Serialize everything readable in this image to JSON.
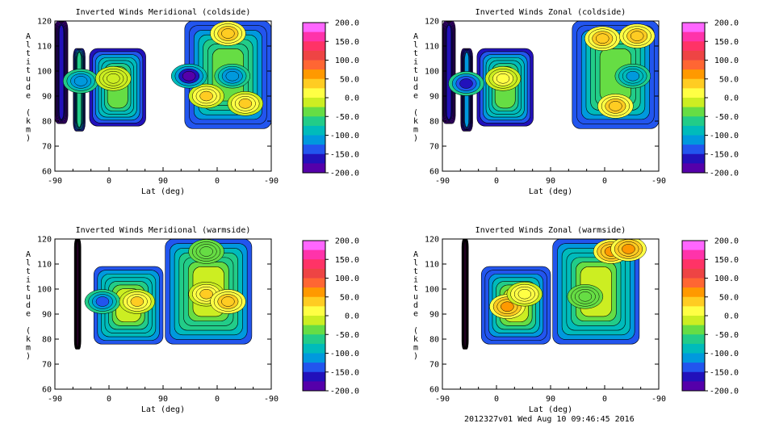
{
  "figure": {
    "footer": "2012327v01 Wed Aug 10 09:46:45 2016"
  },
  "chart_data": [
    {
      "type": "heatmap",
      "title": "Inverted Winds Meridional (coldside)",
      "xlabel": "Lat (deg)",
      "ylabel": "Altitude (km)",
      "x_ticks": [
        "-90",
        "0",
        "90",
        "0",
        "-90"
      ],
      "y_ticks": [
        60,
        70,
        80,
        90,
        100,
        110,
        120
      ],
      "ylim": [
        60,
        120
      ],
      "colorbar_ticks": [
        "200.0",
        "150.0",
        "100.0",
        "50.0",
        "0.0",
        "-50.0",
        "-100.0",
        "-150.0",
        "-200.0"
      ],
      "colorbar_range": [
        -200,
        200
      ],
      "regions": [
        {
          "x0": 0.0,
          "x1": 0.06,
          "ymin": 79,
          "ymax": 120,
          "value": -150
        },
        {
          "x0": 0.085,
          "x1": 0.14,
          "ymin": 76,
          "ymax": 109,
          "value": -60
        },
        {
          "x0": 0.16,
          "x1": 0.42,
          "ymin": 78,
          "ymax": 109,
          "value": -25
        },
        {
          "x0": 0.6,
          "x1": 1.0,
          "ymin": 77,
          "ymax": 120,
          "value": -20
        }
      ],
      "features": [
        {
          "x": 0.12,
          "y": 96,
          "value": -110
        },
        {
          "x": 0.27,
          "y": 97,
          "value": 10
        },
        {
          "x": 0.82,
          "y": 98,
          "value": -110
        },
        {
          "x": 0.8,
          "y": 115,
          "value": 60
        },
        {
          "x": 0.7,
          "y": 90,
          "value": 40
        },
        {
          "x": 0.62,
          "y": 98,
          "value": -170
        },
        {
          "x": 0.88,
          "y": 87,
          "value": 45
        }
      ]
    },
    {
      "type": "heatmap",
      "title": "Inverted Winds Zonal (coldside)",
      "xlabel": "Lat (deg)",
      "ylabel": "Altitude (km)",
      "x_ticks": [
        "-90",
        "0",
        "90",
        "0",
        "-90"
      ],
      "y_ticks": [
        60,
        70,
        80,
        90,
        100,
        110,
        120
      ],
      "ylim": [
        60,
        120
      ],
      "colorbar_ticks": [
        "200.0",
        "150.0",
        "100.0",
        "50.0",
        "0.0",
        "-50.0",
        "-100.0",
        "-150.0",
        "-200.0"
      ],
      "colorbar_range": [
        -200,
        200
      ],
      "regions": [
        {
          "x0": 0.0,
          "x1": 0.06,
          "ymin": 79,
          "ymax": 120,
          "value": -150
        },
        {
          "x0": 0.085,
          "x1": 0.14,
          "ymin": 76,
          "ymax": 109,
          "value": -110
        },
        {
          "x0": 0.16,
          "x1": 0.42,
          "ymin": 78,
          "ymax": 109,
          "value": -25
        },
        {
          "x0": 0.6,
          "x1": 1.0,
          "ymin": 77,
          "ymax": 120,
          "value": -20
        }
      ],
      "features": [
        {
          "x": 0.11,
          "y": 95,
          "value": -140
        },
        {
          "x": 0.28,
          "y": 97,
          "value": 20
        },
        {
          "x": 0.88,
          "y": 98,
          "value": -100
        },
        {
          "x": 0.74,
          "y": 113,
          "value": 50
        },
        {
          "x": 0.9,
          "y": 114,
          "value": 60
        },
        {
          "x": 0.8,
          "y": 86,
          "value": 50
        }
      ]
    },
    {
      "type": "heatmap",
      "title": "Inverted Winds Meridional (warmside)",
      "xlabel": "Lat (deg)",
      "ylabel": "Altitude (km)",
      "x_ticks": [
        "-90",
        "0",
        "90",
        "0",
        "-90"
      ],
      "y_ticks": [
        60,
        70,
        80,
        90,
        100,
        110,
        120
      ],
      "ylim": [
        60,
        120
      ],
      "colorbar_ticks": [
        "200.0",
        "150.0",
        "100.0",
        "50.0",
        "0.0",
        "-50.0",
        "-100.0",
        "-150.0",
        "-200.0"
      ],
      "colorbar_range": [
        -200,
        200
      ],
      "regions": [
        {
          "x0": 0.09,
          "x1": 0.12,
          "ymin": 76,
          "ymax": 120,
          "value": -200
        },
        {
          "x0": 0.18,
          "x1": 0.5,
          "ymin": 78,
          "ymax": 109,
          "value": 0
        },
        {
          "x0": 0.51,
          "x1": 0.91,
          "ymin": 78,
          "ymax": 120,
          "value": 5
        }
      ],
      "features": [
        {
          "x": 0.22,
          "y": 95,
          "value": -120
        },
        {
          "x": 0.38,
          "y": 95,
          "value": 40
        },
        {
          "x": 0.7,
          "y": 98,
          "value": 45
        },
        {
          "x": 0.8,
          "y": 95,
          "value": 50
        },
        {
          "x": 0.7,
          "y": 115,
          "value": -30
        }
      ]
    },
    {
      "type": "heatmap",
      "title": "Inverted Winds Zonal (warmside)",
      "xlabel": "Lat (deg)",
      "ylabel": "Altitude (km)",
      "x_ticks": [
        "-90",
        "0",
        "90",
        "0",
        "-90"
      ],
      "y_ticks": [
        60,
        70,
        80,
        90,
        100,
        110,
        120
      ],
      "ylim": [
        60,
        120
      ],
      "colorbar_ticks": [
        "200.0",
        "150.0",
        "100.0",
        "50.0",
        "0.0",
        "-50.0",
        "-100.0",
        "-150.0",
        "-200.0"
      ],
      "colorbar_range": [
        -200,
        200
      ],
      "regions": [
        {
          "x0": 0.09,
          "x1": 0.12,
          "ymin": 76,
          "ymax": 120,
          "value": -200
        },
        {
          "x0": 0.18,
          "x1": 0.5,
          "ymin": 78,
          "ymax": 109,
          "value": -10
        },
        {
          "x0": 0.51,
          "x1": 0.91,
          "ymin": 78,
          "ymax": 120,
          "value": 0
        }
      ],
      "features": [
        {
          "x": 0.3,
          "y": 93,
          "value": 80
        },
        {
          "x": 0.38,
          "y": 98,
          "value": 30
        },
        {
          "x": 0.66,
          "y": 97,
          "value": -20
        },
        {
          "x": 0.78,
          "y": 115,
          "value": 70
        },
        {
          "x": 0.86,
          "y": 116,
          "value": 80
        }
      ]
    }
  ]
}
